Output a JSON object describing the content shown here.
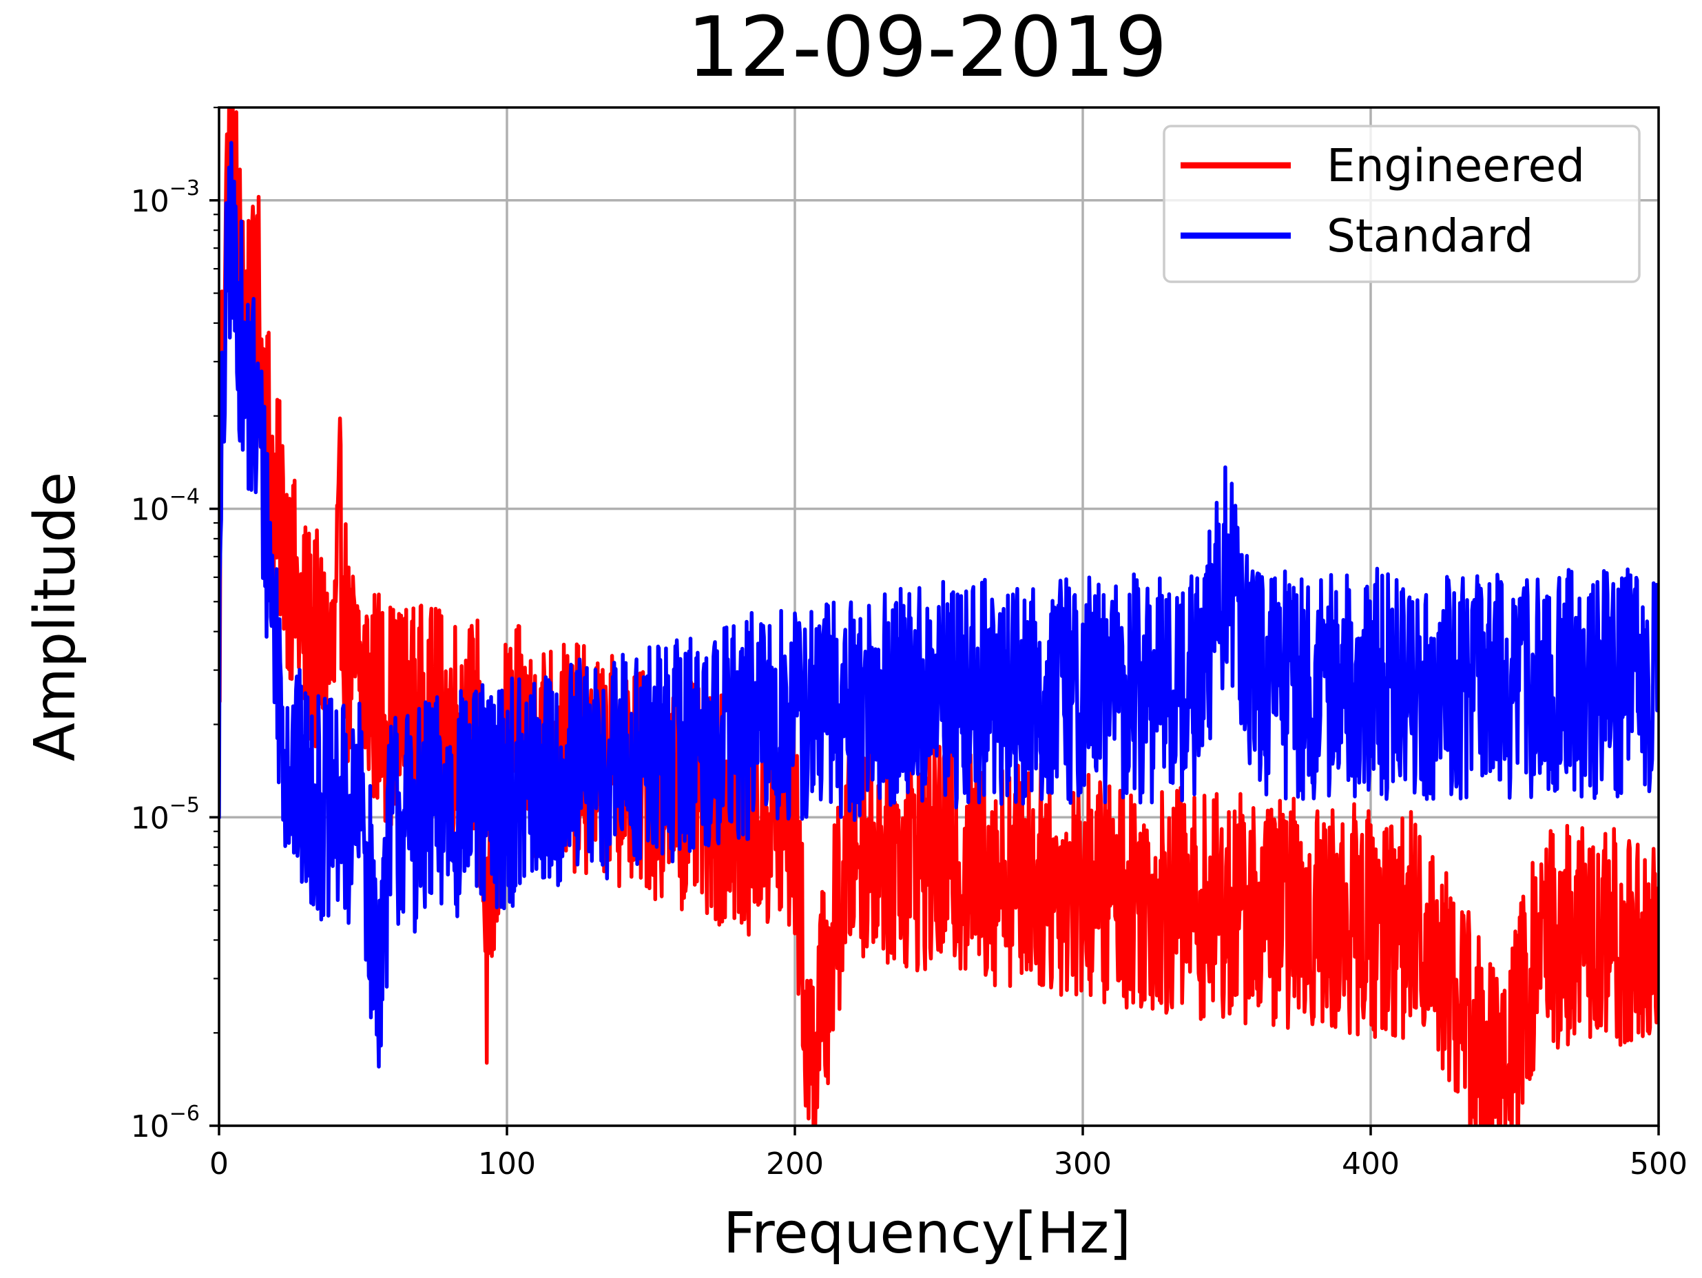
{
  "chart_data": {
    "type": "line",
    "title": "12-09-2019",
    "xlabel": "Frequency[Hz]",
    "ylabel": "Amplitude",
    "xlim": [
      0,
      500
    ],
    "ylim": [
      1e-06,
      0.002
    ],
    "yscale": "log",
    "grid": true,
    "legend_position": "top-right",
    "x_ticks": [
      {
        "value": 0,
        "label": "0"
      },
      {
        "value": 100,
        "label": "100"
      },
      {
        "value": 200,
        "label": "200"
      },
      {
        "value": 300,
        "label": "300"
      },
      {
        "value": 400,
        "label": "400"
      },
      {
        "value": 500,
        "label": "500"
      }
    ],
    "y_ticks": [
      {
        "value": 1e-06,
        "base": "10",
        "exp": "−6"
      },
      {
        "value": 1e-05,
        "base": "10",
        "exp": "−5"
      },
      {
        "value": 0.0001,
        "base": "10",
        "exp": "−4"
      },
      {
        "value": 0.001,
        "base": "10",
        "exp": "−3"
      }
    ],
    "series": [
      {
        "name": "Engineered",
        "color": "#ff0000",
        "points": [
          [
            0,
            2e-05
          ],
          [
            1,
            0.0003
          ],
          [
            2,
            0.0007
          ],
          [
            3,
            0.0011
          ],
          [
            4,
            0.0015
          ],
          [
            5,
            0.0009
          ],
          [
            6,
            0.001
          ],
          [
            7,
            0.0006
          ],
          [
            8,
            0.00075
          ],
          [
            9,
            0.0004
          ],
          [
            10,
            0.0005
          ],
          [
            11,
            0.0003
          ],
          [
            12,
            0.00045
          ],
          [
            13,
            0.00035
          ],
          [
            14,
            0.0005
          ],
          [
            15,
            0.00025
          ],
          [
            16,
            0.0003
          ],
          [
            17,
            0.0002
          ],
          [
            18,
            0.00015
          ],
          [
            19,
            0.00012
          ],
          [
            20,
            0.0001
          ],
          [
            22,
            9e-05
          ],
          [
            24,
            7e-05
          ],
          [
            26,
            5.5e-05
          ],
          [
            28,
            4.5e-05
          ],
          [
            30,
            4e-05
          ],
          [
            35,
            3.5e-05
          ],
          [
            40,
            3.2e-05
          ],
          [
            42,
            8.3e-05
          ],
          [
            45,
            3e-05
          ],
          [
            50,
            2.8e-05
          ],
          [
            55,
            2.4e-05
          ],
          [
            60,
            2.2e-05
          ],
          [
            70,
            2.1e-05
          ],
          [
            80,
            2e-05
          ],
          [
            90,
            1.9e-05
          ],
          [
            93,
            3.2e-06
          ],
          [
            100,
            1.8e-05
          ],
          [
            110,
            1.7e-05
          ],
          [
            120,
            1.6e-05
          ],
          [
            140,
            1.4e-05
          ],
          [
            160,
            1.2e-05
          ],
          [
            180,
            1e-05
          ],
          [
            200,
            9e-06
          ],
          [
            205,
            1.5e-06
          ],
          [
            220,
            8.5e-06
          ],
          [
            240,
            7.5e-06
          ],
          [
            260,
            7e-06
          ],
          [
            280,
            6.5e-06
          ],
          [
            300,
            6e-06
          ],
          [
            320,
            5.6e-06
          ],
          [
            340,
            5.2e-06
          ],
          [
            360,
            5e-06
          ],
          [
            380,
            4.8e-06
          ],
          [
            400,
            4.6e-06
          ],
          [
            420,
            4.4e-06
          ],
          [
            445,
            1.3e-06
          ],
          [
            460,
            4.2e-06
          ],
          [
            480,
            4e-06
          ],
          [
            500,
            4e-06
          ]
        ]
      },
      {
        "name": "Standard",
        "color": "#0000ff",
        "points": [
          [
            0,
            2e-05
          ],
          [
            1,
            0.00015
          ],
          [
            2,
            0.0003
          ],
          [
            3,
            0.0006
          ],
          [
            4,
            0.00085
          ],
          [
            5,
            0.0005
          ],
          [
            6,
            0.0006
          ],
          [
            7,
            0.0004
          ],
          [
            8,
            0.00035
          ],
          [
            9,
            0.0002
          ],
          [
            10,
            0.00028
          ],
          [
            11,
            0.00018
          ],
          [
            12,
            0.00025
          ],
          [
            13,
            0.00016
          ],
          [
            14,
            0.0002
          ],
          [
            15,
            0.00012
          ],
          [
            16,
            0.0001
          ],
          [
            17,
            8e-05
          ],
          [
            18,
            6e-05
          ],
          [
            19,
            4.5e-05
          ],
          [
            20,
            3.5e-05
          ],
          [
            22,
            2e-05
          ],
          [
            25,
            1.4e-05
          ],
          [
            30,
            1.2e-05
          ],
          [
            40,
            1e-05
          ],
          [
            50,
            1e-05
          ],
          [
            55,
            3e-06
          ],
          [
            60,
            1e-05
          ],
          [
            70,
            1e-05
          ],
          [
            80,
            1.1e-05
          ],
          [
            100,
            1.2e-05
          ],
          [
            120,
            1.35e-05
          ],
          [
            140,
            1.5e-05
          ],
          [
            160,
            1.7e-05
          ],
          [
            180,
            1.9e-05
          ],
          [
            200,
            2.1e-05
          ],
          [
            220,
            2.3e-05
          ],
          [
            240,
            2.4e-05
          ],
          [
            260,
            2.5e-05
          ],
          [
            280,
            2.55e-05
          ],
          [
            300,
            2.6e-05
          ],
          [
            320,
            2.6e-05
          ],
          [
            340,
            2.65e-05
          ],
          [
            350,
            6.4e-05
          ],
          [
            360,
            2.7e-05
          ],
          [
            380,
            2.7e-05
          ],
          [
            400,
            2.7e-05
          ],
          [
            420,
            2.7e-05
          ],
          [
            440,
            2.7e-05
          ],
          [
            460,
            2.7e-05
          ],
          [
            480,
            2.7e-05
          ],
          [
            500,
            2.7e-05
          ]
        ]
      }
    ]
  }
}
